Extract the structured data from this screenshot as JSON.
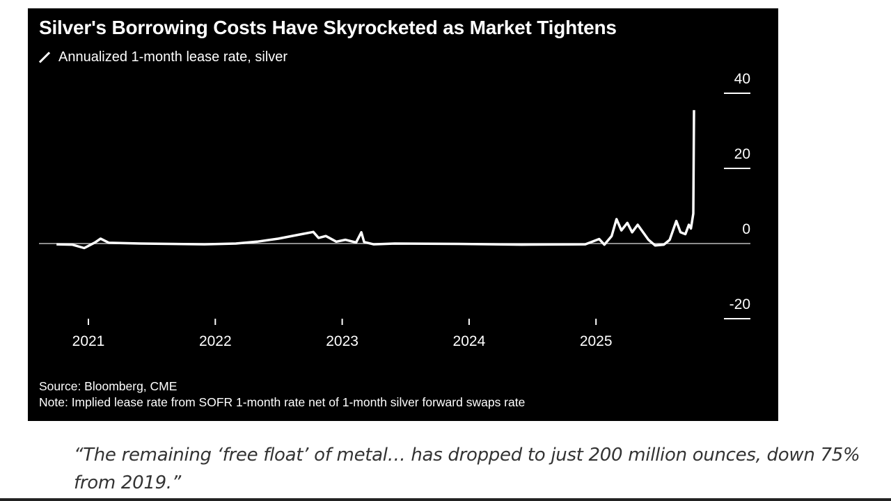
{
  "chart_data": {
    "type": "line",
    "title": "Silver's Borrowing Costs Have Skyrocketed as Market Tightens",
    "series": [
      {
        "name": "Annualized 1-month lease rate, silver",
        "color": "#ffffff",
        "points": [
          [
            "2020-10-01",
            -0.2
          ],
          [
            "2020-11-15",
            -0.3
          ],
          [
            "2020-12-20",
            -1.2
          ],
          [
            "2021-01-20",
            0.3
          ],
          [
            "2021-02-05",
            1.3
          ],
          [
            "2021-03-01",
            0.2
          ],
          [
            "2021-06-01",
            0.0
          ],
          [
            "2021-12-01",
            -0.2
          ],
          [
            "2022-03-01",
            0.0
          ],
          [
            "2022-05-01",
            0.5
          ],
          [
            "2022-07-01",
            1.3
          ],
          [
            "2022-09-01",
            2.4
          ],
          [
            "2022-10-10",
            3.1
          ],
          [
            "2022-10-25",
            1.5
          ],
          [
            "2022-11-15",
            2.0
          ],
          [
            "2022-12-15",
            0.5
          ],
          [
            "2023-01-10",
            1.0
          ],
          [
            "2023-02-10",
            0.3
          ],
          [
            "2023-02-25",
            3.0
          ],
          [
            "2023-03-05",
            0.4
          ],
          [
            "2023-04-01",
            -0.2
          ],
          [
            "2023-06-01",
            0.0
          ],
          [
            "2023-12-01",
            -0.1
          ],
          [
            "2024-06-01",
            -0.3
          ],
          [
            "2024-12-01",
            -0.2
          ],
          [
            "2025-01-10",
            1.2
          ],
          [
            "2025-01-25",
            -0.3
          ],
          [
            "2025-02-15",
            2.0
          ],
          [
            "2025-03-01",
            6.5
          ],
          [
            "2025-03-15",
            3.5
          ],
          [
            "2025-04-01",
            5.5
          ],
          [
            "2025-04-15",
            3.0
          ],
          [
            "2025-05-01",
            5.0
          ],
          [
            "2025-06-01",
            1.0
          ],
          [
            "2025-06-20",
            -0.5
          ],
          [
            "2025-07-15",
            -0.3
          ],
          [
            "2025-08-01",
            1.0
          ],
          [
            "2025-08-20",
            6.0
          ],
          [
            "2025-09-01",
            3.0
          ],
          [
            "2025-09-15",
            2.5
          ],
          [
            "2025-09-25",
            5.0
          ],
          [
            "2025-10-01",
            4.0
          ],
          [
            "2025-10-08",
            8.0
          ],
          [
            "2025-10-10",
            35.5
          ]
        ]
      }
    ],
    "x_ticks": [
      "2021",
      "2022",
      "2023",
      "2024",
      "2025"
    ],
    "y_ticks": [
      "40",
      "20",
      "0",
      "-20"
    ],
    "ylim": [
      -20,
      40
    ],
    "xlim": [
      "2020-08-01",
      "2025-12-31"
    ],
    "y_axis_side": "right",
    "zero_line": true,
    "grid": false,
    "background": "#000000"
  },
  "legend_label": "Annualized 1-month lease rate, silver",
  "source": "Source: Bloomberg, CME",
  "note": "Note: Implied lease rate from SOFR 1-month rate net of 1-month silver forward swaps rate",
  "quote": "“The remaining ‘free float’ of metal… has dropped to just 200 million ounces, down 75% from 2019.”"
}
